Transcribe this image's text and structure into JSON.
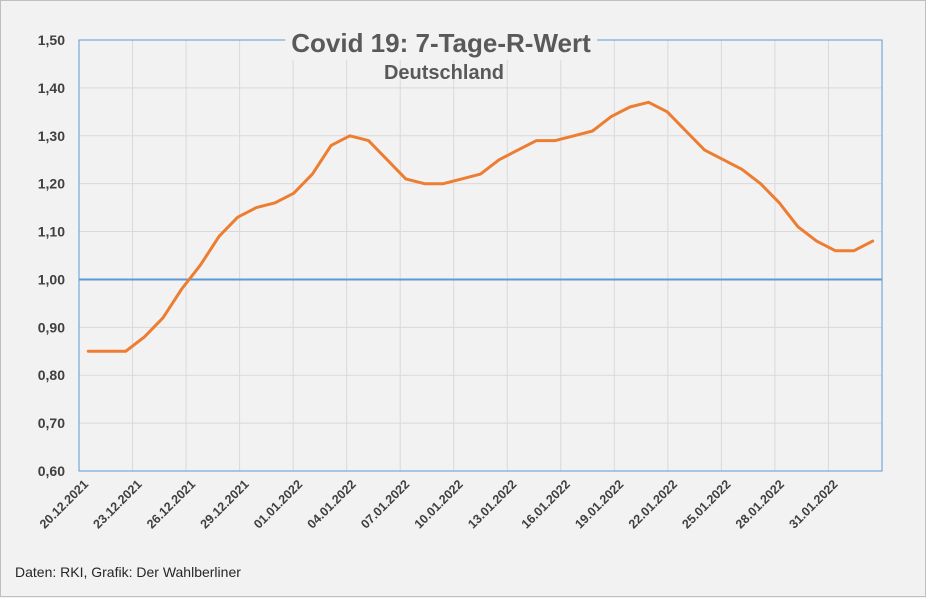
{
  "source_note": "Daten: RKI, Grafik: Der Wahlberliner",
  "colors": {
    "series": "#ed7d31",
    "reference": "#5b9bd5",
    "grid": "#d9d9d9",
    "plot_border": "#5b9bd5"
  },
  "chart_data": {
    "type": "line",
    "title": "Covid 19: 7-Tage-R-Wert",
    "subtitle": "Deutschland",
    "xlabel": "",
    "ylabel": "",
    "ylim": [
      0.6,
      1.5
    ],
    "y_ticks": [
      "0,60",
      "0,70",
      "0,80",
      "0,90",
      "1,00",
      "1,10",
      "1,20",
      "1,30",
      "1,40",
      "1,50"
    ],
    "x_tick_labels": [
      "20.12.2021",
      "23.12.2021",
      "26.12.2021",
      "29.12.2021",
      "01.01.2022",
      "04.01.2022",
      "07.01.2022",
      "10.01.2022",
      "13.01.2022",
      "16.01.2022",
      "19.01.2022",
      "22.01.2022",
      "25.01.2022",
      "28.01.2022",
      "31.01.2022"
    ],
    "grid": true,
    "legend": "none",
    "reference_line": 1.0,
    "series": [
      {
        "x": [
          "20.12.2021",
          "21.12.2021",
          "22.12.2021",
          "23.12.2021",
          "24.12.2021",
          "25.12.2021",
          "26.12.2021",
          "27.12.2021",
          "28.12.2021",
          "29.12.2021",
          "30.12.2021",
          "31.12.2021",
          "01.01.2022",
          "02.01.2022",
          "03.01.2022",
          "04.01.2022",
          "05.01.2022",
          "06.01.2022",
          "07.01.2022",
          "08.01.2022",
          "09.01.2022",
          "10.01.2022",
          "11.01.2022",
          "12.01.2022",
          "13.01.2022",
          "14.01.2022",
          "15.01.2022",
          "16.01.2022",
          "17.01.2022",
          "18.01.2022",
          "19.01.2022",
          "20.01.2022",
          "21.01.2022",
          "22.01.2022",
          "23.01.2022",
          "24.01.2022",
          "25.01.2022",
          "26.01.2022",
          "27.01.2022",
          "28.01.2022",
          "29.01.2022",
          "30.01.2022",
          "31.01.2022"
        ],
        "values": [
          0.85,
          0.85,
          0.85,
          0.88,
          0.92,
          0.98,
          1.03,
          1.09,
          1.13,
          1.15,
          1.16,
          1.18,
          1.22,
          1.28,
          1.3,
          1.29,
          1.25,
          1.21,
          1.2,
          1.2,
          1.21,
          1.22,
          1.25,
          1.27,
          1.29,
          1.29,
          1.3,
          1.31,
          1.34,
          1.36,
          1.37,
          1.35,
          1.31,
          1.27,
          1.25,
          1.23,
          1.2,
          1.16,
          1.11,
          1.08,
          1.06,
          1.06,
          1.08
        ]
      }
    ]
  }
}
